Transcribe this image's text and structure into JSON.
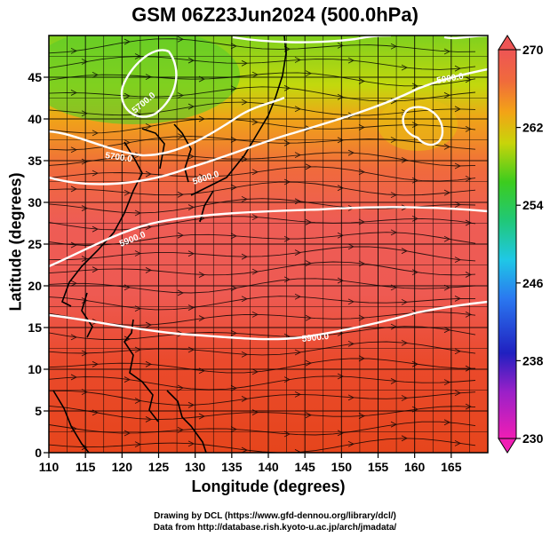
{
  "title": "GSM 06Z23Jun2024 (500.0hPa)",
  "chart_data": {
    "type": "heatmap",
    "title": "GSM 06Z23Jun2024 (500.0hPa)",
    "xlabel": "Longitude (degrees)",
    "ylabel": "Latitude  (degrees)",
    "xlim": [
      110,
      170
    ],
    "ylim": [
      0,
      50
    ],
    "x_ticks": [
      "110",
      "115",
      "120",
      "125",
      "130",
      "135",
      "140",
      "145",
      "150",
      "155",
      "160",
      "165"
    ],
    "y_ticks": [
      "0",
      "5",
      "10",
      "15",
      "20",
      "25",
      "30",
      "35",
      "40",
      "45"
    ],
    "grid": true,
    "colorbar": {
      "min": 230,
      "max": 270,
      "ticks": [
        "230",
        "238",
        "246",
        "254",
        "262",
        "270"
      ],
      "position": "right"
    },
    "contour_labels": [
      "5700.0",
      "5800.0",
      "5900.0",
      "5900.0",
      "5900.0",
      "5700.0"
    ],
    "vectors": "wind streamlines"
  },
  "credits": {
    "line1": "Drawing by DCL (https://www.gfd-dennou.org/library/dcl/)",
    "line2": "Data from http://database.rish.kyoto-u.ac.jp/arch/jmadata/"
  }
}
